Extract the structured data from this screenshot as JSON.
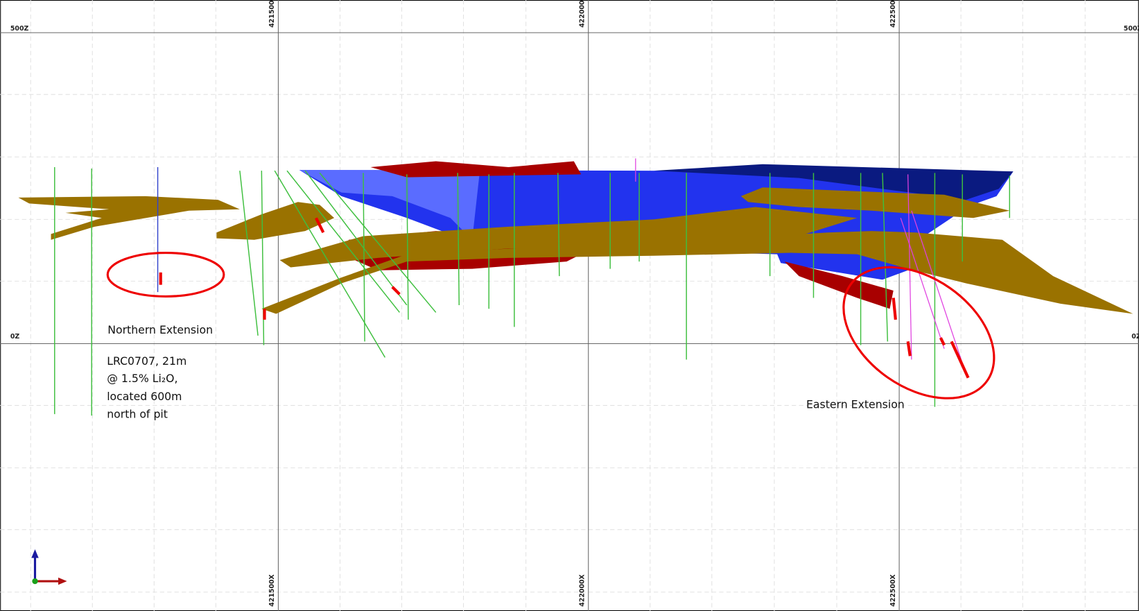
{
  "grid": {
    "x_labels": [
      "421500X",
      "422000X",
      "422500X"
    ],
    "z_labels": [
      "500Z",
      "0Z"
    ]
  },
  "annotations": {
    "northern": {
      "title": "Northern Extension",
      "lines": [
        "LRC0707, 21m",
        "@ 1.5% Li₂O,",
        "located 600m",
        "north of pit"
      ]
    },
    "eastern": {
      "title": "Eastern Extension"
    }
  }
}
